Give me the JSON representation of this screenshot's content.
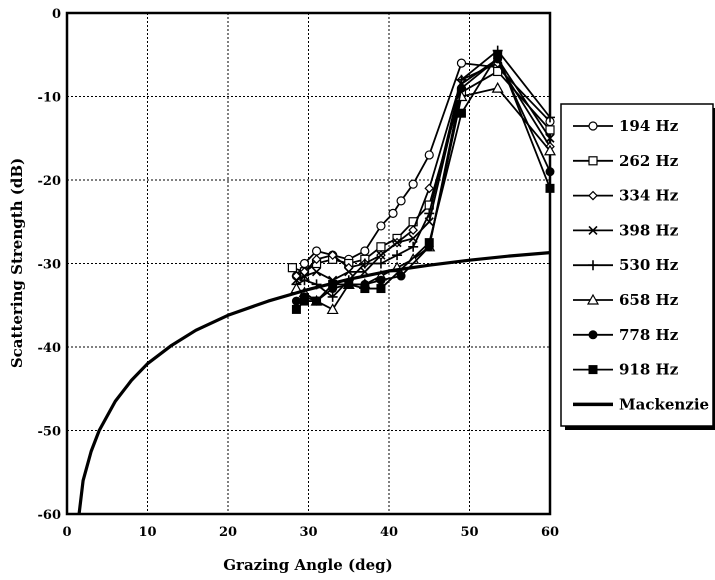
{
  "chart_data": {
    "type": "line",
    "title": "",
    "xlabel": "Grazing Angle (deg)",
    "ylabel": "Scattering Strength (dB)",
    "xlim": [
      0,
      60
    ],
    "ylim": [
      -60,
      0
    ],
    "xticks": [
      "0",
      "10",
      "20",
      "30",
      "40",
      "50",
      "60"
    ],
    "yticks": [
      "0",
      "-10",
      "-20",
      "-30",
      "-40",
      "-50",
      "-60"
    ],
    "grid": true,
    "legend_position": "right",
    "series": [
      {
        "name": "194 Hz",
        "marker": "circle-open",
        "x": [
          28.5,
          29.5,
          31,
          33,
          35,
          37,
          39,
          40.5,
          41.5,
          43,
          45,
          49,
          53.5,
          60
        ],
        "y": [
          -31.5,
          -30,
          -28.5,
          -29,
          -29.5,
          -28.5,
          -25.5,
          -24,
          -22.5,
          -20.5,
          -17,
          -6,
          -6.5,
          -13
        ]
      },
      {
        "name": "262 Hz",
        "marker": "square-open",
        "x": [
          28,
          29.5,
          31,
          33,
          35,
          37,
          39,
          41,
          43,
          45,
          49,
          53.5,
          60
        ],
        "y": [
          -30.5,
          -31,
          -30,
          -29.5,
          -30,
          -29.5,
          -28,
          -27,
          -25,
          -23,
          -9.5,
          -7,
          -14
        ]
      },
      {
        "name": "334 Hz",
        "marker": "diamond-open",
        "x": [
          28.5,
          29.5,
          31,
          33,
          35,
          37,
          39,
          41,
          43,
          45,
          49,
          53.5,
          60
        ],
        "y": [
          -31.5,
          -31,
          -29.5,
          -29,
          -30.5,
          -30,
          -29,
          -27.5,
          -26,
          -21,
          -8,
          -6,
          -16
        ]
      },
      {
        "name": "398 Hz",
        "marker": "x",
        "x": [
          28.5,
          29.5,
          31,
          33,
          35,
          37,
          39,
          41,
          43,
          45,
          49,
          53.5,
          60
        ],
        "y": [
          -32,
          -31.5,
          -31,
          -32,
          -31,
          -31,
          -29,
          -27.5,
          -27,
          -25,
          -8.5,
          -5.5,
          -15
        ]
      },
      {
        "name": "530 Hz",
        "marker": "plus",
        "x": [
          28.5,
          29.5,
          31,
          33,
          35,
          37,
          39,
          41,
          43,
          45,
          49,
          53.5,
          60
        ],
        "y": [
          -32.5,
          -32,
          -32.5,
          -34,
          -32,
          -30,
          -30,
          -29,
          -28,
          -24,
          -8,
          -4.5,
          -12.5
        ]
      },
      {
        "name": "658 Hz",
        "marker": "triangle-open",
        "x": [
          28.5,
          29.5,
          31,
          33,
          35,
          37,
          39,
          41,
          43,
          45,
          49,
          53.5,
          60
        ],
        "y": [
          -33,
          -33.5,
          -34.5,
          -35.5,
          -32.5,
          -32.5,
          -31.5,
          -30.5,
          -29.5,
          -28,
          -10,
          -9,
          -16.5
        ]
      },
      {
        "name": "778 Hz",
        "marker": "circle-filled",
        "x": [
          28.5,
          29.5,
          31,
          33,
          35,
          37,
          39,
          41.5,
          45,
          49,
          53.5,
          60
        ],
        "y": [
          -34.5,
          -34,
          -34.5,
          -33,
          -32.5,
          -32.5,
          -32,
          -31.5,
          -28,
          -9,
          -5.5,
          -19
        ]
      },
      {
        "name": "918 Hz",
        "marker": "square-filled",
        "x": [
          28.5,
          29.5,
          31,
          33,
          35,
          37,
          39,
          45,
          49,
          53.5,
          60
        ],
        "y": [
          -35.5,
          -34.5,
          -34.5,
          -32.5,
          -32.5,
          -33,
          -33,
          -27.5,
          -12,
          -5,
          -21
        ]
      },
      {
        "name": "Mackenzie",
        "marker": "none",
        "x": [
          1.5,
          2,
          3,
          4,
          6,
          8,
          10,
          13,
          16,
          20,
          25,
          30,
          35,
          40,
          45,
          50,
          55,
          60
        ],
        "y": [
          -60,
          -56,
          -52.5,
          -50,
          -46.5,
          -44,
          -42,
          -39.8,
          -38,
          -36.2,
          -34.5,
          -33.1,
          -31.9,
          -30.9,
          -30.2,
          -29.6,
          -29.1,
          -28.7
        ]
      }
    ]
  }
}
